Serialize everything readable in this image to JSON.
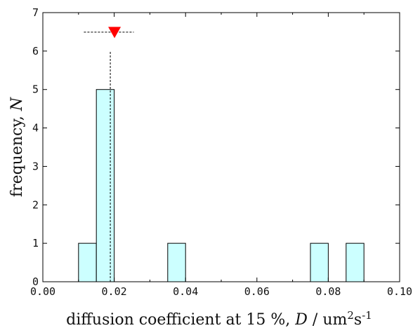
{
  "chart_data": {
    "type": "bar",
    "title": "",
    "xlabel_text": "diffusion coefficient at 15 %,",
    "xlabel_var": "D",
    "xlabel_unit_pre": "/ um",
    "xlabel_sup1": "2",
    "xlabel_unit_mid": "s",
    "xlabel_sup2": "-1",
    "ylabel_text": "frequency,",
    "ylabel_var": "N",
    "xlim": [
      0.0,
      0.1
    ],
    "ylim": [
      0,
      7
    ],
    "xticks": [
      "0.00",
      "0.02",
      "0.04",
      "0.06",
      "0.08",
      "0.10"
    ],
    "xtick_values": [
      0.0,
      0.02,
      0.04,
      0.06,
      0.08,
      0.1
    ],
    "yticks": [
      "0",
      "1",
      "2",
      "3",
      "4",
      "5",
      "6",
      "7"
    ],
    "ytick_values": [
      0,
      1,
      2,
      3,
      4,
      5,
      6,
      7
    ],
    "bin_width": 0.005,
    "bins": [
      {
        "start": 0.01,
        "count": 1
      },
      {
        "start": 0.015,
        "count": 5
      },
      {
        "start": 0.035,
        "count": 1
      },
      {
        "start": 0.075,
        "count": 1
      },
      {
        "start": 0.085,
        "count": 1
      }
    ],
    "mean_marker": {
      "x": 0.0195,
      "y": 6.5,
      "err_low": 0.0115,
      "err_high": 0.0255,
      "vline_top": 6.0
    },
    "bar_fill": "#ccffff",
    "marker_color": "#ff0000",
    "grid": false
  }
}
